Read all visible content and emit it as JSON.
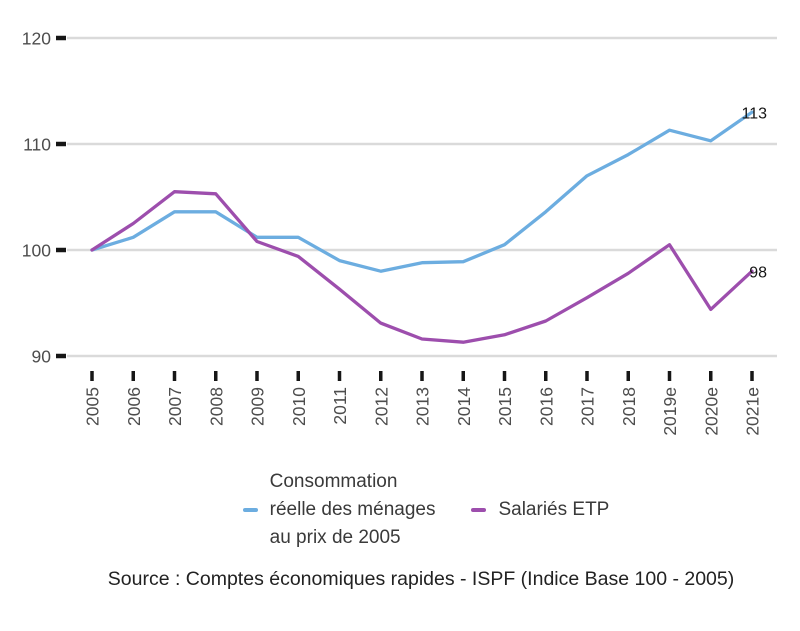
{
  "chart_data": {
    "type": "line",
    "title": "",
    "xlabel": "",
    "ylabel": "",
    "x": [
      "2005",
      "2006",
      "2007",
      "2008",
      "2009",
      "2010",
      "2011",
      "2012",
      "2013",
      "2014",
      "2015",
      "2016",
      "2017",
      "2018",
      "2019e",
      "2020e",
      "2021e"
    ],
    "yticks": [
      120,
      110,
      100,
      90
    ],
    "ylim": [
      88.5,
      123.5
    ],
    "grid": true,
    "legend_position": "bottom",
    "series": [
      {
        "name": "Consommation réelle des ménages au prix de 2005",
        "color": "#6CADE0",
        "values": [
          100,
          101.2,
          103.6,
          103.6,
          101.2,
          101.2,
          99.0,
          98.0,
          98.8,
          98.9,
          100.5,
          103.6,
          107.0,
          109.0,
          111.3,
          110.3,
          113
        ],
        "end_label": "113"
      },
      {
        "name": "Salariés ETP",
        "color": "#9D4EAD",
        "values": [
          100,
          102.5,
          105.5,
          105.3,
          100.8,
          99.4,
          96.3,
          93.1,
          91.6,
          91.3,
          92.0,
          93.3,
          95.5,
          97.8,
          100.5,
          94.4,
          98
        ],
        "end_label": "98"
      }
    ],
    "style": {
      "grid_color": "#DADADA",
      "tick_color": "#161616",
      "axis_label_color": "#4D4D4D"
    }
  },
  "legend": {
    "items": [
      {
        "lines": [
          "Consommation",
          "réelle des ménages",
          "au prix de 2005"
        ]
      },
      {
        "lines": [
          "Salariés ETP"
        ]
      }
    ]
  },
  "source": {
    "text": "Source : Comptes économiques rapides - ISPF (Indice Base 100 - 2005)"
  }
}
